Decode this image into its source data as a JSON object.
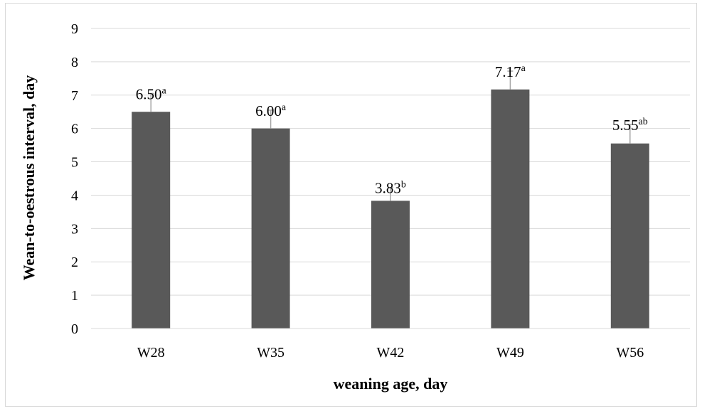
{
  "chart_data": {
    "type": "bar",
    "title": "",
    "xlabel": "weaning age, day",
    "ylabel": "Wean-to-oestrous interval, day",
    "categories": [
      "W28",
      "W35",
      "W42",
      "W49",
      "W56"
    ],
    "values": [
      6.5,
      6.0,
      3.83,
      7.17,
      5.55
    ],
    "error": [
      0.55,
      0.55,
      0.4,
      0.55,
      0.57
    ],
    "data_labels": [
      "6.50",
      "6.00",
      "3.83",
      "7.17",
      "5.55"
    ],
    "superscripts": [
      "a",
      "a",
      "b",
      "a",
      "ab"
    ],
    "ylim": [
      0,
      9
    ],
    "yticks": [
      0,
      1,
      2,
      3,
      4,
      5,
      6,
      7,
      8,
      9
    ],
    "grid": true,
    "legend": "none",
    "colors": {
      "bar": "#595959",
      "error": "#a6a6a6",
      "grid": "#d9d9d9"
    }
  }
}
